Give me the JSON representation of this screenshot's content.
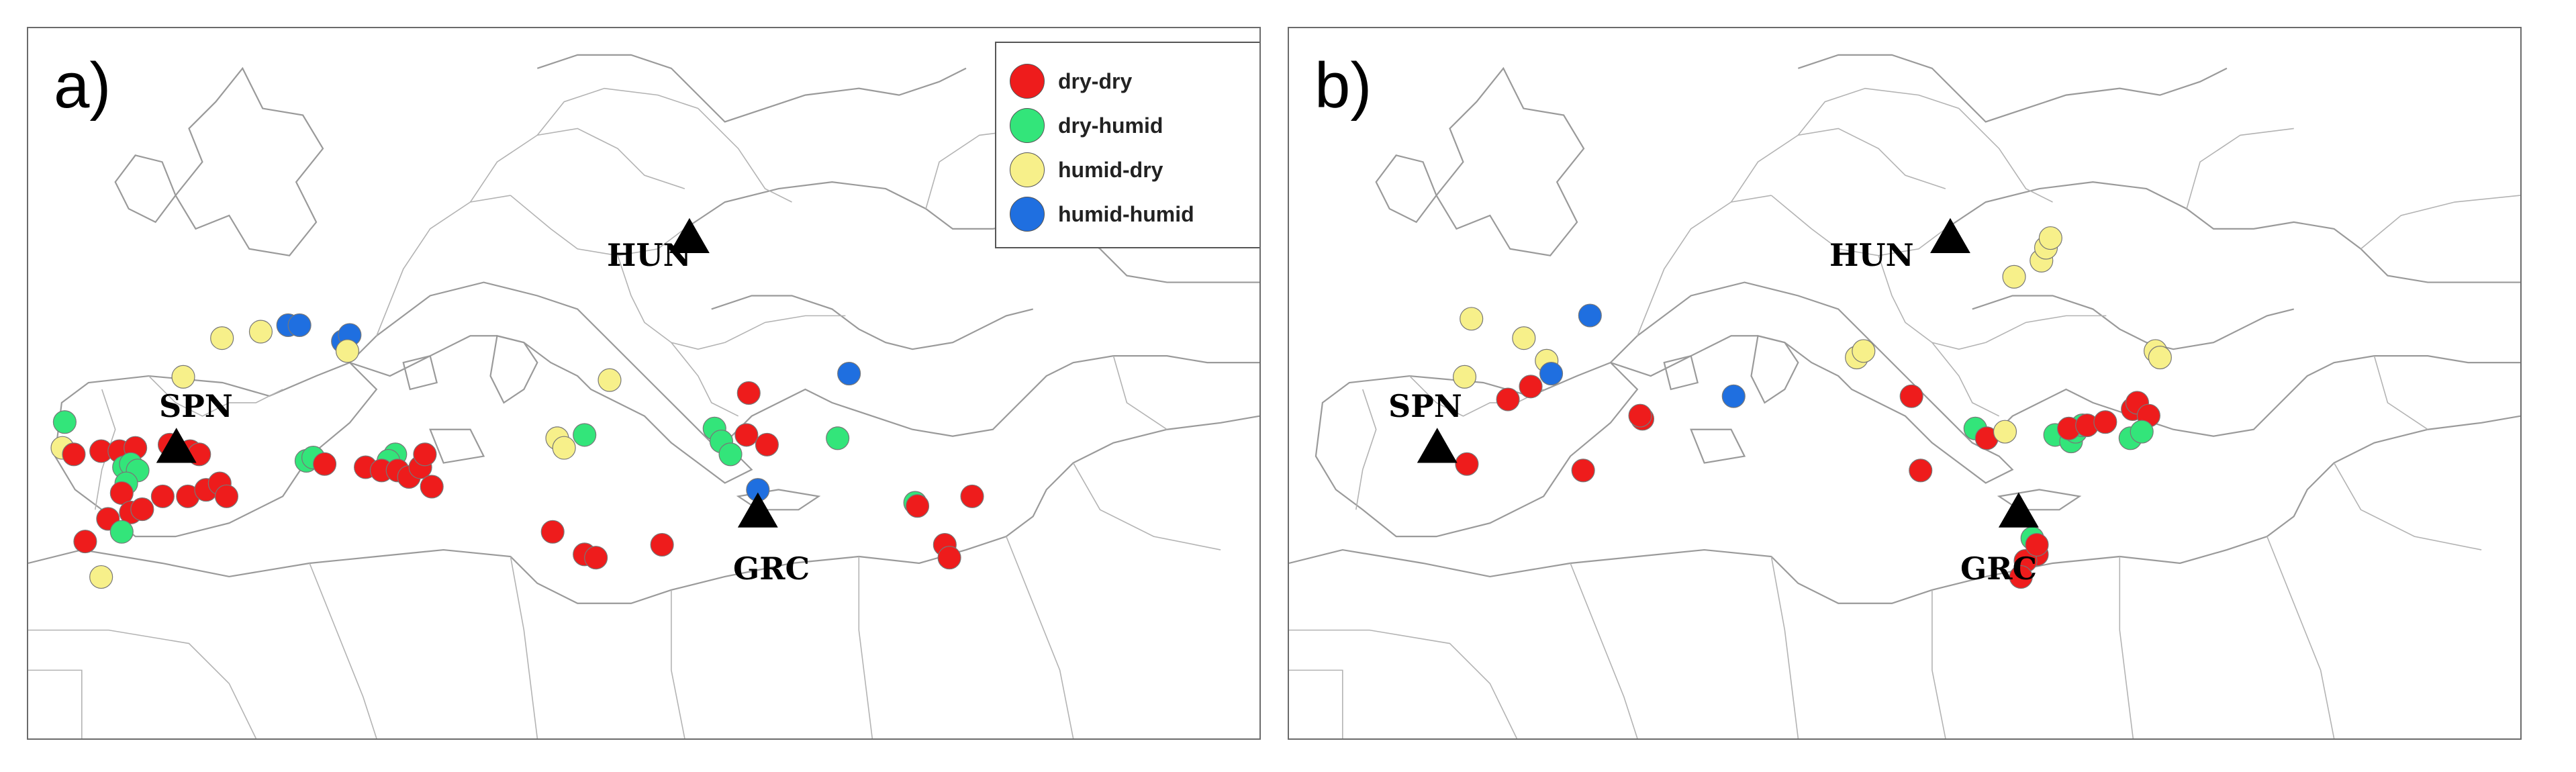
{
  "colors": {
    "dry-dry": "#ee1c1c",
    "dry-humid": "#33e57a",
    "humid-dry": "#f7f08a",
    "humid-humid": "#1f6fe0"
  },
  "legend": {
    "items": [
      {
        "key": "dry-dry",
        "label": "dry-dry"
      },
      {
        "key": "dry-humid",
        "label": "dry-humid"
      },
      {
        "key": "humid-dry",
        "label": "humid-dry"
      },
      {
        "key": "humid-humid",
        "label": "humid-humid"
      }
    ]
  },
  "panels": [
    {
      "letter": "a)",
      "cities": [
        "HUN",
        "SPN",
        "GRC"
      ]
    },
    {
      "letter": "b)",
      "cities": [
        "HUN",
        "SPN",
        "GRC"
      ]
    }
  ],
  "chart_data": [
    {
      "type": "scatter",
      "panel": "a)",
      "reference_sites": [
        {
          "label": "HUN",
          "lon": 19.0,
          "lat": 46.5
        },
        {
          "label": "SPN",
          "lon": -3.5,
          "lat": 40.0
        },
        {
          "label": "GRC",
          "lon": 22.0,
          "lat": 38.0
        }
      ],
      "points": [
        {
          "lon": -8.5,
          "lat": 40.0,
          "cat": "humid-dry"
        },
        {
          "lon": -8.4,
          "lat": 40.8,
          "cat": "dry-humid"
        },
        {
          "lon": -8.0,
          "lat": 39.8,
          "cat": "dry-dry"
        },
        {
          "lon": -6.8,
          "lat": 39.9,
          "cat": "dry-dry"
        },
        {
          "lon": -6.0,
          "lat": 39.9,
          "cat": "dry-dry"
        },
        {
          "lon": -5.3,
          "lat": 40.0,
          "cat": "dry-dry"
        },
        {
          "lon": -3.8,
          "lat": 40.1,
          "cat": "dry-dry"
        },
        {
          "lon": -2.9,
          "lat": 39.9,
          "cat": "dry-dry"
        },
        {
          "lon": -2.5,
          "lat": 39.8,
          "cat": "dry-dry"
        },
        {
          "lon": -5.8,
          "lat": 39.4,
          "cat": "dry-humid"
        },
        {
          "lon": -5.5,
          "lat": 39.5,
          "cat": "dry-humid"
        },
        {
          "lon": -5.2,
          "lat": 39.3,
          "cat": "dry-humid"
        },
        {
          "lon": -5.7,
          "lat": 38.9,
          "cat": "dry-humid"
        },
        {
          "lon": -5.9,
          "lat": 38.6,
          "cat": "dry-dry"
        },
        {
          "lon": -4.1,
          "lat": 38.5,
          "cat": "dry-dry"
        },
        {
          "lon": -3.0,
          "lat": 38.5,
          "cat": "dry-dry"
        },
        {
          "lon": -2.2,
          "lat": 38.7,
          "cat": "dry-dry"
        },
        {
          "lon": -1.6,
          "lat": 38.9,
          "cat": "dry-dry"
        },
        {
          "lon": -1.3,
          "lat": 38.5,
          "cat": "dry-dry"
        },
        {
          "lon": -5.5,
          "lat": 38.0,
          "cat": "dry-dry"
        },
        {
          "lon": -5.0,
          "lat": 38.1,
          "cat": "dry-dry"
        },
        {
          "lon": -6.5,
          "lat": 37.8,
          "cat": "dry-dry"
        },
        {
          "lon": -5.9,
          "lat": 37.4,
          "cat": "dry-humid"
        },
        {
          "lon": -7.5,
          "lat": 37.1,
          "cat": "dry-dry"
        },
        {
          "lon": -6.8,
          "lat": 36.0,
          "cat": "humid-dry"
        },
        {
          "lon": -1.5,
          "lat": 43.4,
          "cat": "humid-dry"
        },
        {
          "lon": 0.2,
          "lat": 43.6,
          "cat": "humid-dry"
        },
        {
          "lon": -3.2,
          "lat": 42.2,
          "cat": "humid-dry"
        },
        {
          "lon": 1.4,
          "lat": 43.8,
          "cat": "humid-humid"
        },
        {
          "lon": 1.9,
          "lat": 43.8,
          "cat": "humid-humid"
        },
        {
          "lon": 3.8,
          "lat": 43.3,
          "cat": "humid-humid"
        },
        {
          "lon": 4.1,
          "lat": 43.5,
          "cat": "humid-humid"
        },
        {
          "lon": 4.0,
          "lat": 43.0,
          "cat": "humid-dry"
        },
        {
          "lon": 2.2,
          "lat": 39.6,
          "cat": "dry-humid"
        },
        {
          "lon": 2.5,
          "lat": 39.7,
          "cat": "dry-humid"
        },
        {
          "lon": 3.0,
          "lat": 39.5,
          "cat": "dry-dry"
        },
        {
          "lon": 6.1,
          "lat": 39.8,
          "cat": "dry-humid"
        },
        {
          "lon": 5.8,
          "lat": 39.6,
          "cat": "dry-humid"
        },
        {
          "lon": 4.8,
          "lat": 39.4,
          "cat": "dry-dry"
        },
        {
          "lon": 5.5,
          "lat": 39.3,
          "cat": "dry-dry"
        },
        {
          "lon": 6.2,
          "lat": 39.3,
          "cat": "dry-dry"
        },
        {
          "lon": 6.7,
          "lat": 39.1,
          "cat": "dry-dry"
        },
        {
          "lon": 7.2,
          "lat": 39.4,
          "cat": "dry-dry"
        },
        {
          "lon": 7.4,
          "lat": 39.8,
          "cat": "dry-dry"
        },
        {
          "lon": 7.7,
          "lat": 38.8,
          "cat": "dry-dry"
        },
        {
          "lon": 13.2,
          "lat": 40.3,
          "cat": "humid-dry"
        },
        {
          "lon": 13.5,
          "lat": 40.0,
          "cat": "humid-dry"
        },
        {
          "lon": 14.4,
          "lat": 40.4,
          "cat": "dry-humid"
        },
        {
          "lon": 15.5,
          "lat": 42.1,
          "cat": "humid-dry"
        },
        {
          "lon": 13.0,
          "lat": 37.4,
          "cat": "dry-dry"
        },
        {
          "lon": 14.4,
          "lat": 36.7,
          "cat": "dry-dry"
        },
        {
          "lon": 14.9,
          "lat": 36.6,
          "cat": "dry-dry"
        },
        {
          "lon": 17.8,
          "lat": 37.0,
          "cat": "dry-dry"
        },
        {
          "lon": 20.1,
          "lat": 40.6,
          "cat": "dry-humid"
        },
        {
          "lon": 20.4,
          "lat": 40.2,
          "cat": "dry-humid"
        },
        {
          "lon": 20.8,
          "lat": 39.8,
          "cat": "dry-humid"
        },
        {
          "lon": 21.5,
          "lat": 40.4,
          "cat": "dry-dry"
        },
        {
          "lon": 21.6,
          "lat": 41.7,
          "cat": "dry-dry"
        },
        {
          "lon": 22.4,
          "lat": 40.1,
          "cat": "dry-dry"
        },
        {
          "lon": 22.0,
          "lat": 38.7,
          "cat": "humid-humid"
        },
        {
          "lon": 25.5,
          "lat": 40.3,
          "cat": "dry-humid"
        },
        {
          "lon": 26.0,
          "lat": 42.3,
          "cat": "humid-humid"
        },
        {
          "lon": 28.9,
          "lat": 38.3,
          "cat": "dry-humid"
        },
        {
          "lon": 29.0,
          "lat": 38.2,
          "cat": "dry-dry"
        },
        {
          "lon": 31.4,
          "lat": 38.5,
          "cat": "dry-dry"
        },
        {
          "lon": 30.2,
          "lat": 37.0,
          "cat": "dry-dry"
        },
        {
          "lon": 30.4,
          "lat": 36.6,
          "cat": "dry-dry"
        }
      ]
    },
    {
      "type": "scatter",
      "panel": "b)",
      "reference_sites": [
        {
          "label": "HUN",
          "lon": 19.0,
          "lat": 46.5
        },
        {
          "label": "SPN",
          "lon": -3.5,
          "lat": 40.0
        },
        {
          "label": "GRC",
          "lon": 22.0,
          "lat": 38.0
        }
      ],
      "points": [
        {
          "lon": -2.0,
          "lat": 44.0,
          "cat": "humid-dry"
        },
        {
          "lon": 0.3,
          "lat": 43.4,
          "cat": "humid-dry"
        },
        {
          "lon": 1.3,
          "lat": 42.7,
          "cat": "humid-dry"
        },
        {
          "lon": -2.3,
          "lat": 42.2,
          "cat": "humid-dry"
        },
        {
          "lon": 3.2,
          "lat": 44.1,
          "cat": "humid-humid"
        },
        {
          "lon": 1.5,
          "lat": 42.3,
          "cat": "humid-humid"
        },
        {
          "lon": 9.5,
          "lat": 41.6,
          "cat": "humid-humid"
        },
        {
          "lon": -0.4,
          "lat": 41.5,
          "cat": "dry-dry"
        },
        {
          "lon": 0.6,
          "lat": 41.9,
          "cat": "dry-dry"
        },
        {
          "lon": 5.5,
          "lat": 40.9,
          "cat": "dry-dry"
        },
        {
          "lon": 5.4,
          "lat": 41.0,
          "cat": "dry-dry"
        },
        {
          "lon": -2.2,
          "lat": 39.5,
          "cat": "dry-dry"
        },
        {
          "lon": 2.9,
          "lat": 39.3,
          "cat": "dry-dry"
        },
        {
          "lon": 14.9,
          "lat": 42.8,
          "cat": "humid-dry"
        },
        {
          "lon": 15.2,
          "lat": 43.0,
          "cat": "humid-dry"
        },
        {
          "lon": 17.3,
          "lat": 41.6,
          "cat": "dry-dry"
        },
        {
          "lon": 23.0,
          "lat": 45.8,
          "cat": "humid-dry"
        },
        {
          "lon": 23.2,
          "lat": 46.2,
          "cat": "humid-dry"
        },
        {
          "lon": 23.4,
          "lat": 46.5,
          "cat": "humid-dry"
        },
        {
          "lon": 21.8,
          "lat": 45.3,
          "cat": "humid-dry"
        },
        {
          "lon": 28.0,
          "lat": 43.0,
          "cat": "humid-dry"
        },
        {
          "lon": 28.2,
          "lat": 42.8,
          "cat": "humid-dry"
        },
        {
          "lon": 27.0,
          "lat": 41.2,
          "cat": "dry-dry"
        },
        {
          "lon": 27.2,
          "lat": 41.4,
          "cat": "dry-dry"
        },
        {
          "lon": 27.7,
          "lat": 41.0,
          "cat": "dry-dry"
        },
        {
          "lon": 26.9,
          "lat": 40.3,
          "cat": "dry-humid"
        },
        {
          "lon": 27.4,
          "lat": 40.5,
          "cat": "dry-humid"
        },
        {
          "lon": 20.1,
          "lat": 40.6,
          "cat": "dry-humid"
        },
        {
          "lon": 20.6,
          "lat": 40.3,
          "cat": "dry-dry"
        },
        {
          "lon": 23.6,
          "lat": 40.4,
          "cat": "dry-humid"
        },
        {
          "lon": 24.3,
          "lat": 40.2,
          "cat": "dry-humid"
        },
        {
          "lon": 24.5,
          "lat": 40.5,
          "cat": "dry-humid"
        },
        {
          "lon": 24.8,
          "lat": 40.7,
          "cat": "dry-humid"
        },
        {
          "lon": 24.2,
          "lat": 40.6,
          "cat": "dry-dry"
        },
        {
          "lon": 25.0,
          "lat": 40.7,
          "cat": "dry-dry"
        },
        {
          "lon": 25.8,
          "lat": 40.8,
          "cat": "dry-dry"
        },
        {
          "lon": 17.7,
          "lat": 39.3,
          "cat": "dry-dry"
        },
        {
          "lon": 21.4,
          "lat": 40.5,
          "cat": "humid-dry"
        },
        {
          "lon": 22.6,
          "lat": 37.2,
          "cat": "dry-humid"
        },
        {
          "lon": 22.8,
          "lat": 36.7,
          "cat": "dry-dry"
        },
        {
          "lon": 22.3,
          "lat": 36.5,
          "cat": "dry-dry"
        },
        {
          "lon": 22.1,
          "lat": 36.0,
          "cat": "dry-dry"
        },
        {
          "lon": 22.8,
          "lat": 37.0,
          "cat": "dry-dry"
        }
      ]
    }
  ]
}
